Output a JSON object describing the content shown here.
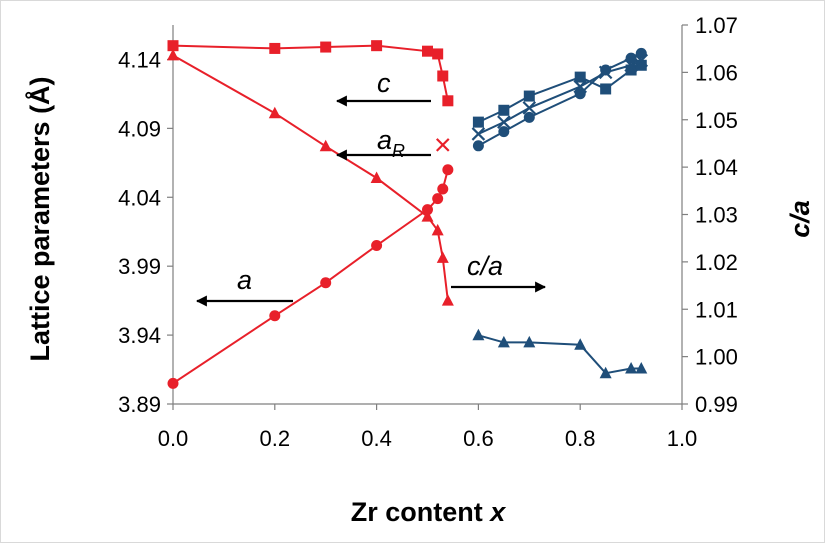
{
  "chart_data": {
    "type": "line",
    "xlabel": "Zr content x",
    "xlabel_main": "Zr content ",
    "xlabel_var": "x",
    "ylabel": "Lattice parameters (Å)",
    "y2label": "c/a",
    "xlim": [
      0.0,
      1.0
    ],
    "ylim": [
      3.89,
      4.165
    ],
    "y2lim": [
      0.99,
      1.07
    ],
    "x_ticks": [
      "0.0",
      "0.2",
      "0.4",
      "0.6",
      "0.8",
      "1.0"
    ],
    "y_ticks": [
      "3.89",
      "3.94",
      "3.99",
      "4.04",
      "4.09",
      "4.14"
    ],
    "y2_ticks": [
      "0.99",
      "1.00",
      "1.01",
      "1.02",
      "1.03",
      "1.04",
      "1.05",
      "1.06",
      "1.07"
    ],
    "colors": {
      "red": "#e8202a",
      "blue": "#1f4e79"
    },
    "series": [
      {
        "axis": "left",
        "color": "#e8202a",
        "marker": "square",
        "x": [
          0.0,
          0.2,
          0.3,
          0.4,
          0.5,
          0.52,
          0.53,
          0.54
        ],
        "values": [
          4.15,
          4.148,
          4.149,
          4.15,
          4.146,
          4.144,
          4.128,
          4.11
        ]
      },
      {
        "axis": "left",
        "color": "#e8202a",
        "marker": "triangle",
        "x": [
          0.0,
          0.2,
          0.3,
          0.4,
          0.5,
          0.52,
          0.53,
          0.54
        ],
        "values": [
          4.143,
          4.101,
          4.077,
          4.054,
          4.026,
          4.016,
          3.996,
          3.965
        ]
      },
      {
        "axis": "left",
        "color": "#e8202a",
        "marker": "circle",
        "x": [
          0.0,
          0.2,
          0.3,
          0.4,
          0.5,
          0.52,
          0.53,
          0.54
        ],
        "values": [
          3.905,
          3.954,
          3.978,
          4.005,
          4.031,
          4.039,
          4.046,
          4.06
        ]
      },
      {
        "axis": "left",
        "color": "#e8202a",
        "marker": "x",
        "x": [
          0.53
        ],
        "values": [
          4.078
        ]
      },
      {
        "axis": "right",
        "color": "#1f4e79",
        "marker": "square",
        "x": [
          0.6,
          0.65,
          0.7,
          0.8,
          0.85,
          0.9,
          0.92
        ],
        "values": [
          1.0495,
          1.052,
          1.055,
          1.059,
          1.0565,
          1.0605,
          1.0615
        ]
      },
      {
        "axis": "right",
        "color": "#1f4e79",
        "marker": "x",
        "x": [
          0.6,
          0.65,
          0.7,
          0.8,
          0.85,
          0.9,
          0.92
        ],
        "values": [
          1.047,
          1.0495,
          1.0525,
          1.057,
          1.06,
          1.0615,
          1.0625
        ]
      },
      {
        "axis": "right",
        "color": "#1f4e79",
        "marker": "circle",
        "x": [
          0.6,
          0.65,
          0.7,
          0.8,
          0.85,
          0.9,
          0.92
        ],
        "values": [
          1.0445,
          1.0475,
          1.0505,
          1.0555,
          1.0605,
          1.063,
          1.064
        ]
      },
      {
        "axis": "right",
        "color": "#1f4e79",
        "marker": "triangle",
        "x": [
          0.6,
          0.65,
          0.7,
          0.8,
          0.85,
          0.9,
          0.92
        ],
        "values": [
          1.0045,
          1.003,
          1.003,
          1.0025,
          0.9965,
          0.9975,
          0.9975
        ]
      }
    ],
    "annotations": [
      {
        "label": "c",
        "italic": true,
        "arrow": "left"
      },
      {
        "label": "a",
        "subscript": "R",
        "italic": true,
        "arrow": "left"
      },
      {
        "label": "a",
        "italic": true,
        "arrow": "left"
      },
      {
        "label": "c/a",
        "italic": true,
        "arrow": "right"
      }
    ],
    "grid": false,
    "legend": "none"
  }
}
